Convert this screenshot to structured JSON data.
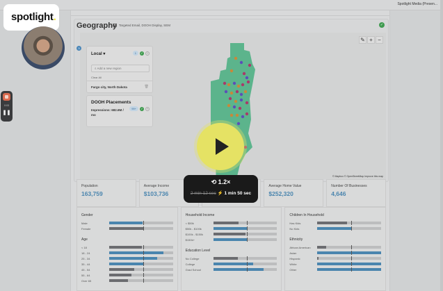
{
  "window": {
    "title": "Spotlight Media (Presen..."
  },
  "overlay": {
    "logo": {
      "text": "spotlight",
      "dot": "."
    },
    "recorder": {
      "time": "0:03"
    },
    "playback": {
      "speed": "1.2×",
      "original_time": "2 min 12 sec",
      "new_time": "1 min 50 sec"
    }
  },
  "geography": {
    "title": "Geography",
    "subtitle": "Targeted Email, DOOH Display, SEM",
    "side_step": "3",
    "local_panel": {
      "label": "Local ▾",
      "count": "1",
      "search_placeholder": "Add a new region",
      "clear_all": "Clear All",
      "region": "Fargo city, North Dakota"
    },
    "dooh_panel": {
      "title": "DOOH Placements",
      "impressions": "Impressions: 682.6M / mo",
      "count": "99+"
    },
    "map": {
      "tools": [
        "✎",
        "+",
        "−"
      ],
      "attribution": "© Mapbox © OpenStreetMap Improve this map"
    }
  },
  "stats": [
    {
      "label": "Population",
      "value": "163,759"
    },
    {
      "label": "Average Income",
      "value": "$103,736"
    },
    {
      "label": "Median Household",
      "value": ""
    },
    {
      "label": "Average Home Value",
      "value": "$252,320"
    },
    {
      "label": "Number Of Businesses",
      "value": "4,646"
    }
  ],
  "demographics": {
    "gender": {
      "title": "Gender",
      "rows": [
        {
          "label": "Male",
          "pct": 52,
          "color": "#4a85ae"
        },
        {
          "label": "Female",
          "pct": 53,
          "color": "#6b6c70"
        }
      ]
    },
    "age": {
      "title": "Age",
      "rows": [
        {
          "label": "< 18",
          "pct": 51,
          "color": "#6b6c70"
        },
        {
          "label": "18 - 24",
          "pct": 85,
          "color": "#4a85ae"
        },
        {
          "label": "25 - 34",
          "pct": 75,
          "color": "#4a85ae"
        },
        {
          "label": "35 - 44",
          "pct": 55,
          "color": "#4a85ae"
        },
        {
          "label": "45 - 54",
          "pct": 39,
          "color": "#6b6c70"
        },
        {
          "label": "55 - 64",
          "pct": 35,
          "color": "#6b6c70"
        },
        {
          "label": "Over 65",
          "pct": 29,
          "color": "#6b6c70"
        }
      ]
    },
    "income": {
      "title": "Household Income",
      "rows": [
        {
          "label": "< $50k",
          "pct": 40,
          "color": "#6b6c70"
        },
        {
          "label": "$50k - $100k",
          "pct": 54,
          "color": "#4a85ae"
        },
        {
          "label": "$100k - $150k",
          "pct": 50,
          "color": "#6b6c70"
        },
        {
          "label": "$150k+",
          "pct": 54,
          "color": "#4a85ae"
        }
      ]
    },
    "education": {
      "title": "Education Level",
      "rows": [
        {
          "label": "No College",
          "pct": 38,
          "color": "#6b6c70"
        },
        {
          "label": "College",
          "pct": 63,
          "color": "#4a85ae"
        },
        {
          "label": "Grad School",
          "pct": 79,
          "color": "#4a85ae"
        }
      ]
    },
    "children": {
      "title": "Children In Household",
      "rows": [
        {
          "label": "Has Kids",
          "pct": 47,
          "color": "#6b6c70"
        },
        {
          "label": "No Kids",
          "pct": 54,
          "color": "#4a85ae"
        }
      ]
    },
    "ethnicity": {
      "title": "Ethnicity",
      "rows": [
        {
          "label": "African American",
          "pct": 14,
          "color": "#6b6c70"
        },
        {
          "label": "Asian",
          "pct": 100,
          "color": "#4a85ae"
        },
        {
          "label": "Hispanic",
          "pct": 2,
          "color": "#6b6c70"
        },
        {
          "label": "White",
          "pct": 100,
          "color": "#4a85ae"
        },
        {
          "label": "Other",
          "pct": 100,
          "color": "#4a85ae"
        }
      ]
    }
  }
}
